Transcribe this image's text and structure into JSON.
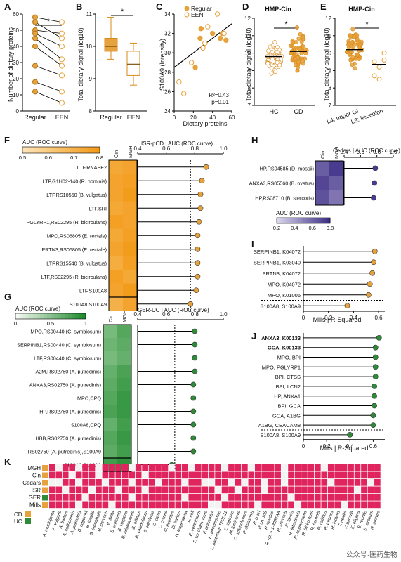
{
  "colors": {
    "orange": "#e6a23c",
    "orange_dark": "#d88a1c",
    "green": "#2e8b3a",
    "purple": "#4b3a8f",
    "pink": "#e0245e",
    "cd": "#e6a23c",
    "uc": "#2e8b3a"
  },
  "panelA": {
    "letter": "A",
    "ylabel": "Number of dietary proteins",
    "groups": [
      "Regular",
      "EEN"
    ],
    "sig": "*",
    "ylim": [
      0,
      60
    ],
    "ticks": [
      0,
      10,
      20,
      30,
      40,
      50,
      60
    ],
    "chart_data": {
      "type": "scatter",
      "pairs": [
        [
          58,
          55
        ],
        [
          55,
          45
        ],
        [
          50,
          48
        ],
        [
          48,
          40
        ],
        [
          45,
          32
        ],
        [
          40,
          28
        ],
        [
          28,
          22
        ],
        [
          18,
          12
        ],
        [
          12,
          5
        ]
      ]
    }
  },
  "panelB": {
    "letter": "B",
    "ylabel": "Total dietary signal (log10)",
    "groups": [
      "Regular",
      "EEN"
    ],
    "sig": "*",
    "ylim": [
      8,
      11
    ],
    "ticks": [
      8,
      9,
      10,
      11
    ],
    "chart_data": {
      "type": "bar",
      "series": [
        {
          "name": "Regular",
          "min": 9.6,
          "q1": 9.85,
          "median": 10.0,
          "q3": 10.25,
          "max": 10.9
        },
        {
          "name": "EEN",
          "min": 8.8,
          "q1": 9.1,
          "median": 9.45,
          "q3": 9.85,
          "max": 10.1
        }
      ]
    }
  },
  "panelC": {
    "letter": "C",
    "ylabel": "S100A9 (Intensity)",
    "xlabel": "Dietary proteins",
    "legend": [
      "Regular",
      "EEN"
    ],
    "r2": "R²=0.43",
    "p": "p=0.01",
    "xlim": [
      0,
      60
    ],
    "ylim": [
      24,
      34
    ],
    "xticks": [
      0,
      20,
      40,
      60
    ],
    "yticks": [
      24,
      26,
      28,
      30,
      32,
      34
    ],
    "chart_data": {
      "type": "scatter",
      "series": [
        {
          "name": "Regular",
          "x": [
            22,
            27,
            40,
            48,
            50,
            54,
            28
          ],
          "y": [
            28.5,
            31.5,
            32,
            31.5,
            32,
            31.3,
            32.5
          ]
        },
        {
          "name": "EEN",
          "x": [
            5,
            10,
            18,
            30,
            32,
            35,
            45,
            52
          ],
          "y": [
            27,
            25.8,
            29,
            30.5,
            31,
            32.7,
            34,
            32
          ]
        }
      ],
      "fit": [
        [
          0,
          28.5
        ],
        [
          60,
          33
        ]
      ]
    }
  },
  "panelD": {
    "letter": "D",
    "title": "HMP-Cin",
    "ylabel": "Total dietary signal (log10)",
    "groups": [
      "HC",
      "CD"
    ],
    "sig": "*",
    "ylim": [
      7,
      12
    ],
    "ticks": [
      7,
      8,
      9,
      10,
      11,
      12
    ],
    "chart_data": {
      "type": "scatter",
      "series": [
        {
          "name": "HC",
          "median": 9.8,
          "spread": [
            8.6,
            11.0
          ]
        },
        {
          "name": "CD",
          "median": 10.1,
          "spread": [
            8.6,
            11.8
          ]
        }
      ]
    }
  },
  "panelE": {
    "letter": "E",
    "title": "HMP-Cin",
    "ylabel": "Total dietary signal (log10)",
    "groups": [
      "L4: upper GI",
      "L3: ileocolon"
    ],
    "sig": "*",
    "ylim": [
      7,
      12
    ],
    "ticks": [
      7,
      8,
      9,
      10,
      11,
      12
    ],
    "chart_data": {
      "type": "scatter",
      "series": [
        {
          "name": "L4: upper GI",
          "median": 10.2,
          "spread": [
            8.8,
            11.8
          ]
        },
        {
          "name": "L3: ileocolon",
          "values": [
            9.5,
            9.2,
            10.0,
            8.7,
            8.5,
            9.6
          ]
        }
      ]
    }
  },
  "panelF": {
    "letter": "F",
    "legend_title": "AUC (ROC curve)",
    "legend_ticks": [
      "0.5",
      "0.6",
      "0.7",
      "0.8"
    ],
    "cols": [
      "Cin",
      "MGH"
    ],
    "axis_title": "ISR-pCD | AUC (ROC curve)",
    "xticks": [
      "0.4",
      "0.6",
      "0.8",
      "1.0"
    ],
    "chart_data": {
      "type": "bar",
      "categories": [
        "LTF,RNASE2",
        "LTF,G1H02-140 (R. hominis)",
        "LTF,RS10550 (B. vulgatus)",
        "LTF,SRI",
        "PGLYRP1,RS02295 (R. bicirculans)",
        "MPO,RS06805 (E. rectale)",
        "PRTN3,RS06805 (E. rectale)",
        "LTF,RS15540 (B. vulgatus)",
        "LTF,RS02295 (R. bicirculans)",
        "LTF,S100A8",
        "S100A8,S100A9"
      ],
      "values": [
        0.88,
        0.85,
        0.84,
        0.84,
        0.83,
        0.82,
        0.82,
        0.82,
        0.82,
        0.81,
        0.77
      ],
      "threshold": 0.77,
      "heat": [
        [
          0.78,
          0.8
        ],
        [
          0.8,
          0.82
        ],
        [
          0.8,
          0.84
        ],
        [
          0.78,
          0.8
        ],
        [
          0.82,
          0.8
        ],
        [
          0.78,
          0.82
        ],
        [
          0.8,
          0.84
        ],
        [
          0.76,
          0.82
        ],
        [
          0.82,
          0.78
        ],
        [
          0.8,
          0.84
        ],
        [
          0.74,
          0.8
        ]
      ],
      "xlim": [
        0.4,
        1.0
      ]
    }
  },
  "panelG": {
    "letter": "G",
    "legend_title": "AUC (ROC curve)",
    "legend_ticks": [
      "0",
      "0.5",
      "1"
    ],
    "cols": [
      "Cin",
      "MGH"
    ],
    "axis_title": "GER-UC | AUC (ROC curve)",
    "xticks": [
      "0.4",
      "0.6",
      "0.8",
      "1.0"
    ],
    "chart_data": {
      "type": "bar",
      "categories": [
        "MPO,RS00440 (C. symbiosum)",
        "SERPINB1,RS00440 (C. symbiosum)",
        "LTF,RS00440 (C. symbiosum)",
        "A2M,RS02750 (A. putredinis)",
        "ANXA3,RS02750 (A. putredinis)",
        "MPO,CPQ",
        "HP,RS02750 (A. putredinis)",
        "S100A8,CPQ",
        "HBB,RS02750 (A. putredinis)",
        "RS02750 (A. putredinis),S100A9",
        "S100A8,S100A9"
      ],
      "values": [
        0.8,
        0.8,
        0.8,
        0.8,
        0.79,
        0.79,
        0.79,
        0.79,
        0.79,
        0.79,
        0.64
      ],
      "threshold": 0.66,
      "heat": [
        [
          0.5,
          0.7
        ],
        [
          0.55,
          0.65
        ],
        [
          0.5,
          0.6
        ],
        [
          0.6,
          0.75
        ],
        [
          0.65,
          0.8
        ],
        [
          0.7,
          0.85
        ],
        [
          0.75,
          0.85
        ],
        [
          0.6,
          0.8
        ],
        [
          0.7,
          0.85
        ],
        [
          0.65,
          0.8
        ],
        [
          0.8,
          0.9
        ]
      ],
      "xlim": [
        0.4,
        1.0
      ]
    }
  },
  "panelH": {
    "letter": "H",
    "cols": [
      "Cin",
      "MGH"
    ],
    "axis_title": "Cedars | AUC (ROC curve)",
    "xticks": [
      "0.4",
      "0.6",
      "0.8",
      "1.0"
    ],
    "legend_title": "AUC (ROC curve)",
    "legend_ticks": [
      "0.2",
      "0.4",
      "0.6",
      "0.8"
    ],
    "chart_data": {
      "type": "bar",
      "categories": [
        "HP,RS04585 (D. mossii)",
        "ANXA3,RS05560 (B. ovatus)",
        "HP,RS08710 (B. stercoris)"
      ],
      "values": [
        0.78,
        0.77,
        0.76
      ],
      "heat": [
        [
          0.7,
          0.85
        ],
        [
          0.8,
          0.7
        ],
        [
          0.75,
          0.6
        ]
      ],
      "xlim": [
        0.4,
        1.0
      ]
    }
  },
  "panelI": {
    "letter": "I",
    "axis_title": "Mills | R-Squared",
    "xticks": [
      "0",
      "0.2",
      "0.4",
      "0.6"
    ],
    "chart_data": {
      "type": "bar",
      "categories": [
        "SERPINB1, K04072",
        "SERPINB1, K03040",
        "PRTN3, K04072",
        "MPO, K04072",
        "MPO, K01006",
        "S100A8, S100A9"
      ],
      "values": [
        0.57,
        0.56,
        0.55,
        0.53,
        0.52,
        0.35
      ],
      "threshold": 0.43,
      "xlim": [
        0,
        0.65
      ]
    }
  },
  "panelJ": {
    "letter": "J",
    "axis_title": "Mills | R-Squared",
    "xticks": [
      "0",
      "0.2",
      "0.4",
      "0.6"
    ],
    "chart_data": {
      "type": "bar",
      "categories": [
        "ANXA3, K00133",
        "GCA, K00133",
        "MPO, BPI",
        "MPO, PGLYRP1",
        "BPI, CTSS",
        "BPI, LCN2",
        "HP, ANXA1",
        "BPI, GCA",
        "GCA, A1BG",
        "A1BG, CEACAM8",
        "S100A8, S100A9"
      ],
      "values": [
        0.65,
        0.62,
        0.62,
        0.62,
        0.62,
        0.61,
        0.61,
        0.61,
        0.6,
        0.6,
        0.4
      ],
      "threshold": 0.46,
      "xlim": [
        0,
        0.7
      ]
    }
  },
  "panelK": {
    "letter": "K",
    "rows": [
      "MGH",
      "Cin",
      "Cedars",
      "ISR",
      "GER",
      "Mills"
    ],
    "row_groups": [
      "CD",
      "CD",
      "CD",
      "CD",
      "UC",
      "CD"
    ],
    "legend": [
      "CD",
      "UC"
    ],
    "species": [
      "A. muciniphila",
      "A. vulgaris",
      "A. hadrus",
      "A. colihominis",
      "A. putredinis",
      "B. eggerthii",
      "B. fragilis",
      "B. intestinalis",
      "B. stercoris",
      "B. theta",
      "B. uniformis",
      "B. vulgatus",
      "B. adolescentis",
      "B. bifidum",
      "B. catenulatum",
      "B. wexlerae",
      "C. catus",
      "C. comes",
      "C. eutactus",
      "D. invisus",
      "D. longicatena",
      "E. coli",
      "E. ventriosum",
      "F. saccharivorans",
      "F. prausnitzii",
      "K. pneumoniae",
      "L. bacterium TF01-11",
      "L. rogosae",
      "M. funiformis",
      "O. splanchnicus",
      "P. distasonis",
      "P. copri",
      "P. sp. 109",
      "P. merdae",
      "R. sp. 5-1-39BFAA",
      "R. stercoris",
      "R. faecis",
      "R. intestinalis",
      "R. inulinivorans",
      "R. bicirculans",
      "R. hominis",
      "R. callidus",
      "R. torques",
      "R. lactaris",
      "T. nexilis",
      "V. parvula",
      "E. eligens",
      "E. rectale",
      "E. siraeum",
      "R. gnavus"
    ],
    "chart_data": {
      "type": "heatmap",
      "presence": [
        "10110110111101111101101111011101111011111011111111",
        "11101110111111011111111111111111111011111111111111",
        "00110111011101110111011001101011011011111101111101",
        "11011101110111011111111110110111011111111111110111",
        "11111011111101111111011111011111111101111111111111",
        "11110111101111111111111100111110111110111111011111"
      ]
    }
  },
  "watermark": "公众号·医药生物"
}
